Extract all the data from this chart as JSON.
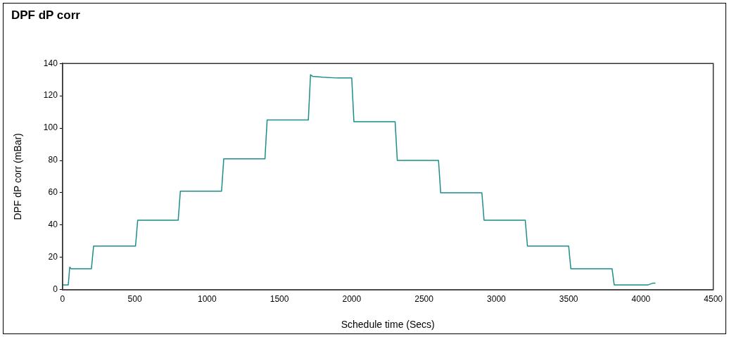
{
  "chart_data": {
    "type": "line",
    "title": "DPF dP corr",
    "xlabel": "Schedule time (Secs)",
    "ylabel": "DPF dP corr (mBar)",
    "x": [
      0,
      40,
      50,
      60,
      200,
      215,
      230,
      505,
      520,
      535,
      800,
      815,
      830,
      1100,
      1115,
      1130,
      1400,
      1415,
      1430,
      1700,
      1715,
      1730,
      1800,
      1900,
      2000,
      2015,
      2030,
      2300,
      2315,
      2330,
      2600,
      2615,
      2630,
      2900,
      2915,
      2930,
      3200,
      3215,
      3230,
      3500,
      3515,
      3530,
      3800,
      3815,
      3830,
      4050,
      4080,
      4100
    ],
    "series": [
      {
        "color": "#1a8f8a",
        "values": [
          3,
          3,
          14,
          13,
          13,
          27,
          27,
          27,
          43,
          43,
          43,
          61,
          61,
          61,
          81,
          81,
          81,
          105,
          105,
          105,
          133,
          132,
          131.5,
          131,
          131,
          104,
          104,
          104,
          80,
          80,
          80,
          60,
          60,
          60,
          43,
          43,
          43,
          27,
          27,
          27,
          13,
          13,
          13,
          3,
          3,
          3,
          4,
          4
        ]
      }
    ],
    "xlim": [
      0,
      4500
    ],
    "xticks": [
      0,
      500,
      1000,
      1500,
      2000,
      2500,
      3000,
      3500,
      4000,
      4500
    ],
    "ylim": [
      0,
      140
    ],
    "yticks": [
      0,
      20,
      40,
      60,
      80,
      100,
      120,
      140
    ],
    "grid": false,
    "legend": false,
    "marker": "none",
    "line_style": "solid"
  }
}
